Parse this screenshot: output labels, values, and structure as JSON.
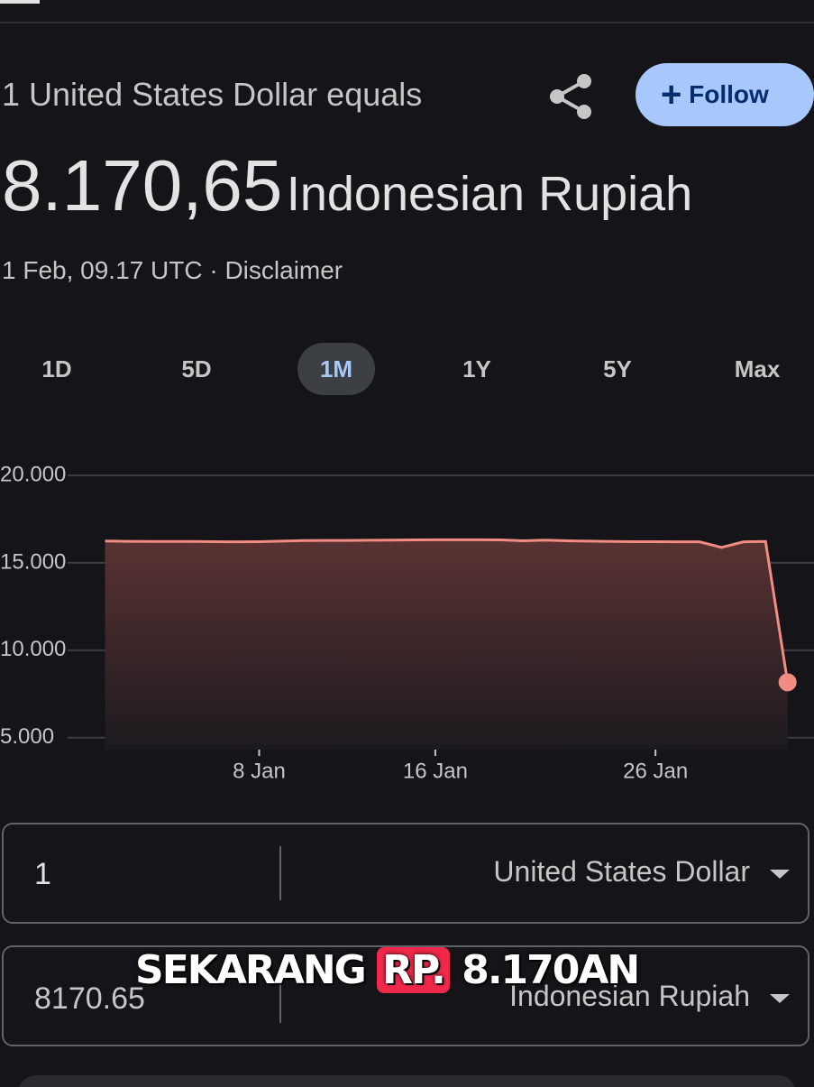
{
  "header": {
    "lead": "1 United States Dollar equals",
    "amount": "8.170,65",
    "currency": "Indonesian Rupiah",
    "timestamp": "1 Feb, 09.17 UTC",
    "separator": "·",
    "disclaimer": "Disclaimer",
    "follow": "Follow"
  },
  "ranges": [
    "1D",
    "5D",
    "1M",
    "1Y",
    "5Y",
    "Max"
  ],
  "active_range": 2,
  "chart_data": {
    "type": "area",
    "color": "#f28b82",
    "x": [
      1,
      2,
      3,
      4,
      5,
      6,
      7,
      8,
      9,
      10,
      11,
      12,
      13,
      14,
      15,
      16,
      17,
      18,
      19,
      20,
      21,
      22,
      23,
      24,
      25,
      26,
      27,
      28,
      29,
      30,
      31,
      32
    ],
    "values": [
      16250,
      16230,
      16220,
      16220,
      16220,
      16210,
      16200,
      16210,
      16240,
      16270,
      16280,
      16280,
      16290,
      16300,
      16310,
      16320,
      16320,
      16320,
      16310,
      16260,
      16300,
      16260,
      16240,
      16220,
      16210,
      16210,
      16200,
      16200,
      15880,
      16200,
      16220,
      8170.65
    ],
    "xlim": [
      -0.7,
      33.2
    ],
    "ylim": [
      3700,
      20000
    ],
    "xticks": [
      {
        "value": 8,
        "label": "8 Jan"
      },
      {
        "value": 16,
        "label": "16 Jan"
      },
      {
        "value": 26,
        "label": "26 Jan"
      }
    ],
    "yticks": [
      {
        "value": 20000,
        "label": "20.000"
      },
      {
        "value": 15000,
        "label": "15.000"
      },
      {
        "value": 10000,
        "label": "10.000"
      },
      {
        "value": 5000,
        "label": "5.000"
      }
    ],
    "grid": true
  },
  "converter": {
    "from_amount": "1",
    "from_currency": "United States Dollar",
    "to_amount": "8170.65",
    "to_currency": "Indonesian Rupiah"
  },
  "caption": {
    "before": "SEKARANG",
    "highlight": "RP.",
    "after": "8.170AN"
  }
}
